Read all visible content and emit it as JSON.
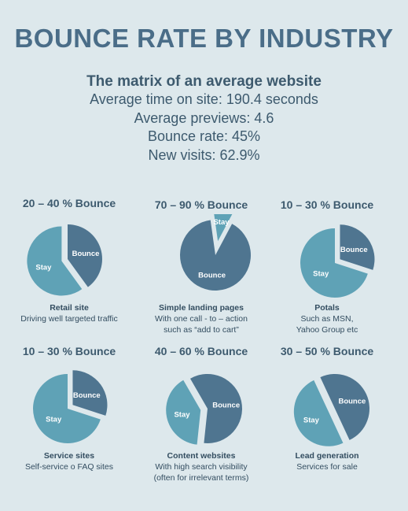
{
  "title": "BOUNCE RATE BY INDUSTRY",
  "subtitle": "The matrix of an average website",
  "stats": [
    "Average time on site:  190.4 seconds",
    "Average previews: 4.6",
    "Bounce rate: 45%",
    "New visits: 62.9%"
  ],
  "colors": {
    "bounce": "#4f7590",
    "stay": "#5fa2b6",
    "background": "#dde8ec",
    "title": "#4a6d88"
  },
  "chart_data": [
    {
      "type": "pie",
      "title": "20 – 40 % Bounce",
      "name": "Retail site",
      "description": "Driving well targeted traffic",
      "slices": [
        {
          "label": "Bounce",
          "value": 40
        },
        {
          "label": "Stay",
          "value": 60
        }
      ],
      "exploded": "Stay"
    },
    {
      "type": "pie",
      "title": "70 – 90 % Bounce",
      "name": "Simple landing pages",
      "description": "With one call - to – action\nsuch as “add to cart”",
      "slices": [
        {
          "label": "Bounce",
          "value": 90
        },
        {
          "label": "Stay",
          "value": 10
        }
      ],
      "exploded": "Stay"
    },
    {
      "type": "pie",
      "title": "10 – 30 % Bounce",
      "name": "Potals",
      "description": "Such as MSN,\nYahoo Group etc",
      "slices": [
        {
          "label": "Bounce",
          "value": 30
        },
        {
          "label": "Stay",
          "value": 70
        }
      ],
      "exploded": "Bounce"
    },
    {
      "type": "pie",
      "title": "10 – 30 % Bounce",
      "name": "Service sites",
      "description": "Self-service o FAQ sites",
      "slices": [
        {
          "label": "Bounce",
          "value": 30
        },
        {
          "label": "Stay",
          "value": 70
        }
      ],
      "exploded": "Bounce"
    },
    {
      "type": "pie",
      "title": "40 – 60 % Bounce",
      "name": "Content websites",
      "description": "With high search visibility\n(often for irrelevant terms)",
      "slices": [
        {
          "label": "Bounce",
          "value": 60
        },
        {
          "label": "Stay",
          "value": 40
        }
      ],
      "exploded": "Stay"
    },
    {
      "type": "pie",
      "title": "30 – 50 % Bounce",
      "name": "Lead generation",
      "description": "Services for sale",
      "slices": [
        {
          "label": "Bounce",
          "value": 50
        },
        {
          "label": "Stay",
          "value": 50
        }
      ],
      "exploded": "Stay"
    }
  ]
}
